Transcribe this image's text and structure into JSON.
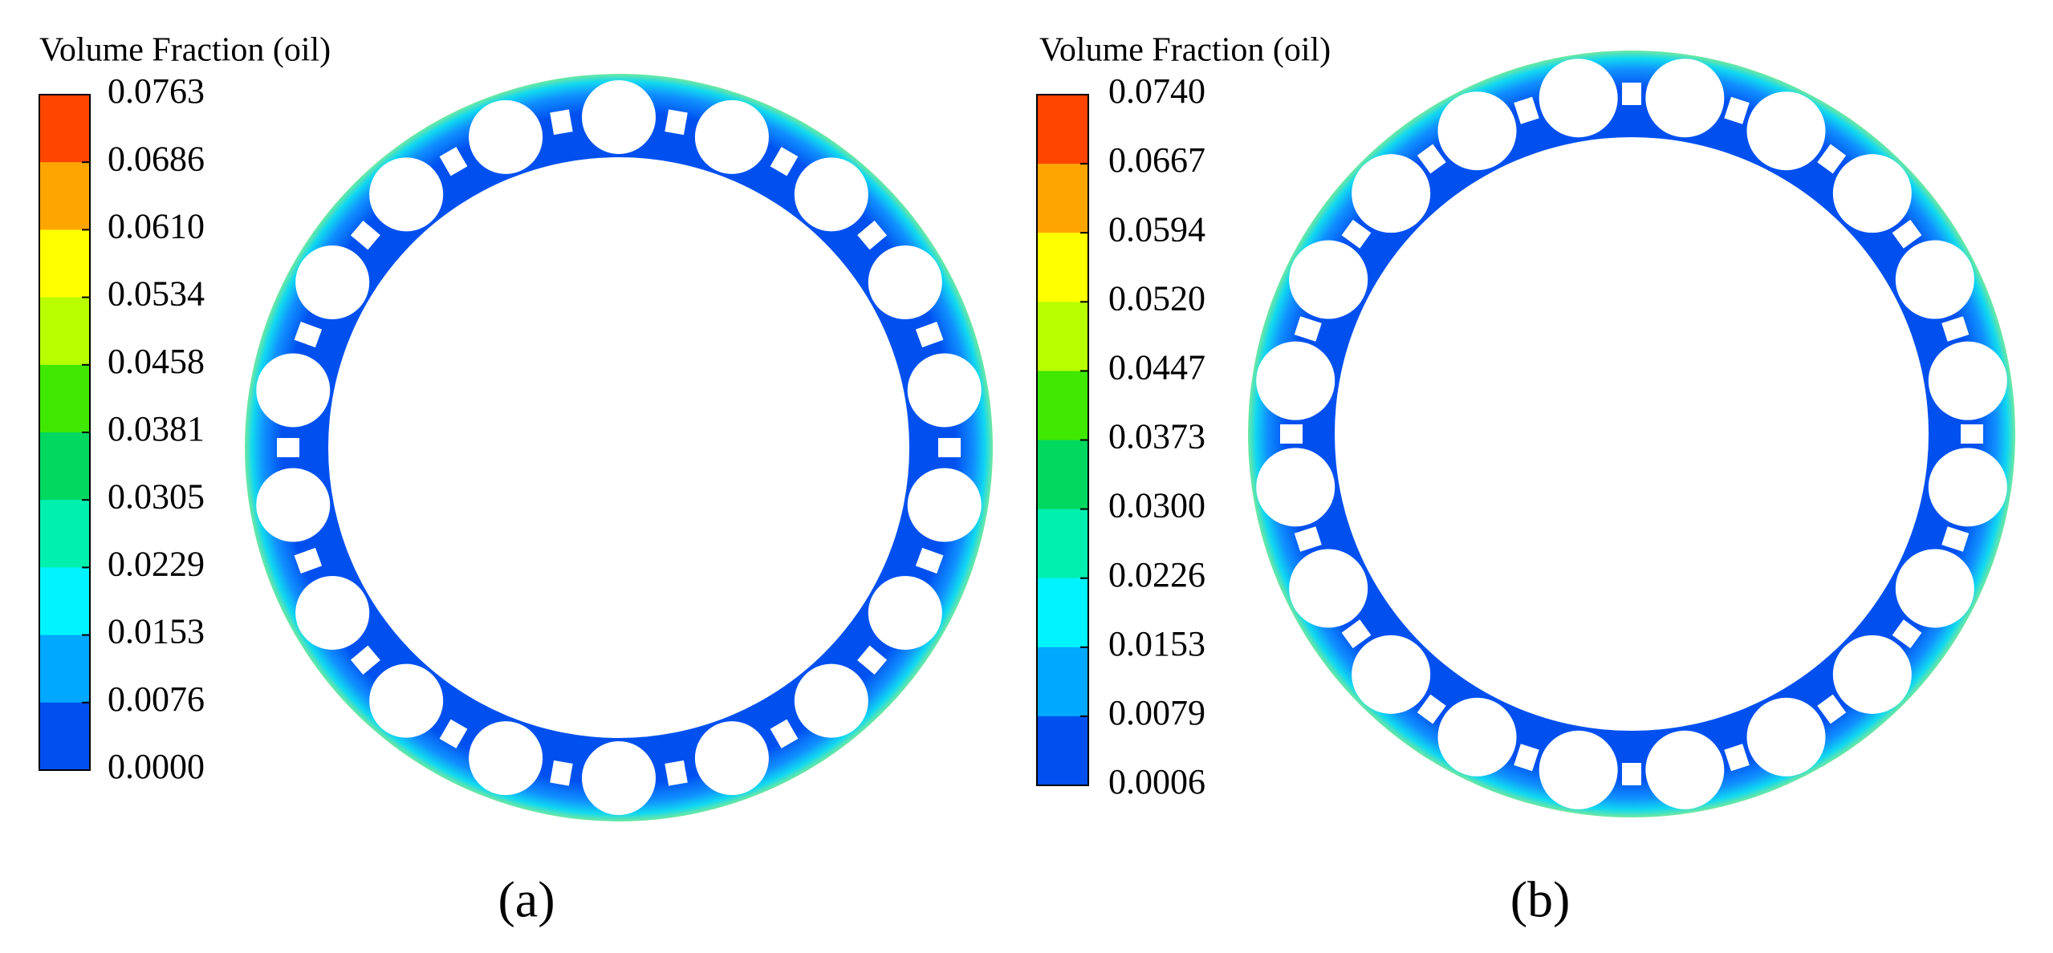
{
  "panels": [
    {
      "legend_title": "Volume Fraction (oil)",
      "ticks": [
        "0.0763",
        "0.0686",
        "0.0610",
        "0.0534",
        "0.0458",
        "0.0381",
        "0.0305",
        "0.0229",
        "0.0153",
        "0.0076",
        "0.0000"
      ],
      "label": "(a)"
    },
    {
      "legend_title": "Volume Fraction (oil)",
      "ticks": [
        "0.0740",
        "0.0667",
        "0.0594",
        "0.0520",
        "0.0447",
        "0.0373",
        "0.0300",
        "0.0226",
        "0.0153",
        "0.0079",
        "0.0006"
      ],
      "label": "(b)"
    }
  ]
}
